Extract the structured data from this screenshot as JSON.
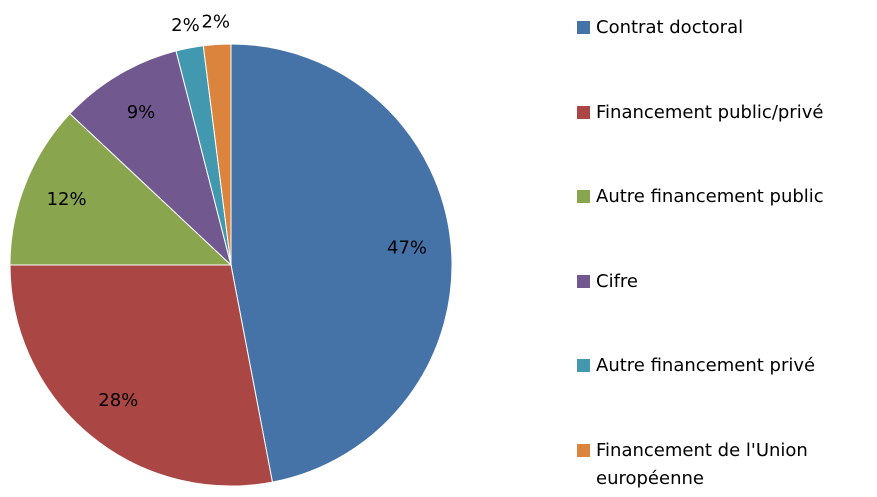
{
  "chart_data": {
    "type": "pie",
    "categories": [
      "Contrat doctoral",
      "Financement public/privé",
      "Autre financement public",
      "Cifre",
      "Autre financement privé",
      "Financement de l'Union européenne"
    ],
    "values": [
      47,
      28,
      12,
      9,
      2,
      2
    ],
    "value_labels": [
      "47%",
      "28%",
      "12%",
      "9%",
      "2%",
      "2%"
    ],
    "colors": [
      "#4572A7",
      "#AA4643",
      "#89A54E",
      "#71588F",
      "#4198AF",
      "#DB843D"
    ],
    "legend": "right"
  }
}
